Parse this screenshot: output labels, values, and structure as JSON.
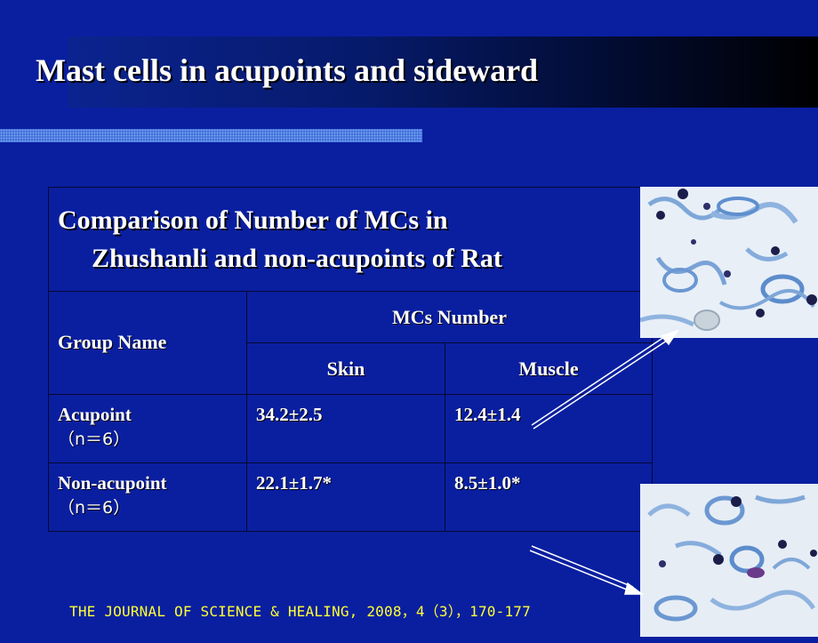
{
  "slide": {
    "title": "Mast cells in acupoints and sideward",
    "citation": "THE JOURNAL OF SCIENCE & HEALING, 2008，4（3），170-177"
  },
  "table": {
    "caption_line1": "Comparison of Number of MCs in",
    "caption_line2": "Zhushanli and non-acupoints of Rat",
    "col_group": "Group Name",
    "col_mcs": "MCs Number",
    "col_skin": "Skin",
    "col_muscle": "Muscle",
    "rows": [
      {
        "group": "Acupoint",
        "n": "（n＝6）",
        "skin": "34.2±2.5",
        "muscle": "12.4±1.4"
      },
      {
        "group": "Non-acupoint",
        "n": "（n＝6）",
        "skin": "22.1±1.7*",
        "muscle": "8.5±1.0*"
      }
    ]
  },
  "colors": {
    "background": "#0a1fa0",
    "title_text": "#ffffff",
    "citation_text": "#ffff33",
    "stain_dark": "#1b1e4a",
    "stain_blue": "#5f8fcf"
  },
  "images": [
    {
      "name": "micrograph-acupoint",
      "subject": "stained mast cells (skin tissue)"
    },
    {
      "name": "micrograph-non-acupoint",
      "subject": "stained mast cells (tissue)"
    }
  ]
}
